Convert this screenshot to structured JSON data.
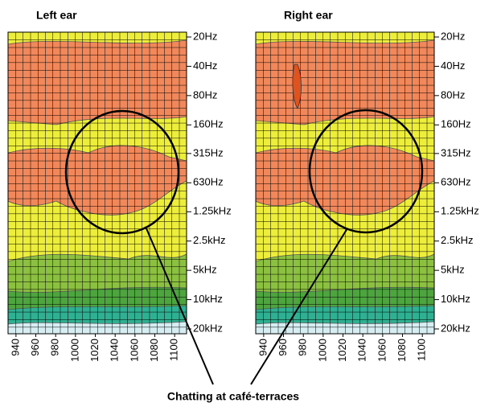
{
  "chart_data": [
    {
      "type": "contour",
      "title": "Left ear",
      "log_y": true,
      "y_inverted": true,
      "xlim": [
        932,
        1112
      ],
      "xticks": [
        940,
        960,
        980,
        1000,
        1020,
        1040,
        1060,
        1080,
        1100
      ],
      "ylim": [
        20,
        20000
      ],
      "yticks": [
        {
          "value": 20,
          "label": "20Hz"
        },
        {
          "value": 40,
          "label": "40Hz"
        },
        {
          "value": 80,
          "label": "80Hz"
        },
        {
          "value": 160,
          "label": "160Hz"
        },
        {
          "value": 315,
          "label": "315Hz"
        },
        {
          "value": 630,
          "label": "630Hz"
        },
        {
          "value": 1250,
          "label": "1.25kHz"
        },
        {
          "value": 2500,
          "label": "2.5kHz"
        },
        {
          "value": 5000,
          "label": "5kHz"
        },
        {
          "value": 10000,
          "label": "10kHz"
        },
        {
          "value": 20000,
          "label": "20kHz"
        }
      ]
    },
    {
      "type": "contour",
      "title": "Right ear",
      "log_y": true,
      "y_inverted": true,
      "xlim": [
        932,
        1112
      ],
      "xticks": [
        940,
        960,
        980,
        1000,
        1020,
        1040,
        1060,
        1080,
        1100
      ],
      "ylim": [
        20,
        20000
      ],
      "yticks": [
        {
          "value": 20,
          "label": "20Hz"
        },
        {
          "value": 40,
          "label": "40Hz"
        },
        {
          "value": 80,
          "label": "80Hz"
        },
        {
          "value": 160,
          "label": "160Hz"
        },
        {
          "value": 315,
          "label": "315Hz"
        },
        {
          "value": 630,
          "label": "630Hz"
        },
        {
          "value": 1250,
          "label": "1.25kHz"
        },
        {
          "value": 2500,
          "label": "2.5kHz"
        },
        {
          "value": 5000,
          "label": "5kHz"
        },
        {
          "value": 10000,
          "label": "10kHz"
        },
        {
          "value": 20000,
          "label": "20kHz"
        }
      ]
    }
  ],
  "annotation": "Chatting at café-terraces"
}
